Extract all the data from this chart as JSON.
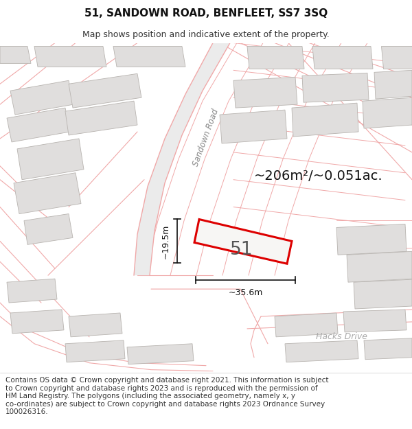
{
  "title": "51, SANDOWN ROAD, BENFLEET, SS7 3SQ",
  "subtitle": "Map shows position and indicative extent of the property.",
  "footer": "Contains OS data © Crown copyright and database right 2021. This information is subject\nto Crown copyright and database rights 2023 and is reproduced with the permission of\nHM Land Registry. The polygons (including the associated geometry, namely x, y\nco-ordinates) are subject to Crown copyright and database rights 2023 Ordnance Survey\n100026316.",
  "area_label": "~206m²/~0.051ac.",
  "dim_width": "~35.6m",
  "dim_height": "~19.5m",
  "number_label": "51",
  "road_label": "Sandown Road",
  "drive_label": "Hacks Drive",
  "map_bg": "#f7f6f4",
  "building_fill": "#e0dedd",
  "building_edge": "#b8b4b0",
  "road_line_color": "#f0a8a8",
  "road_line_color2": "#e88888",
  "main_plot_color": "#dd0000",
  "dim_line_color": "#111111",
  "title_fontsize": 11,
  "subtitle_fontsize": 9,
  "footer_fontsize": 7.5
}
